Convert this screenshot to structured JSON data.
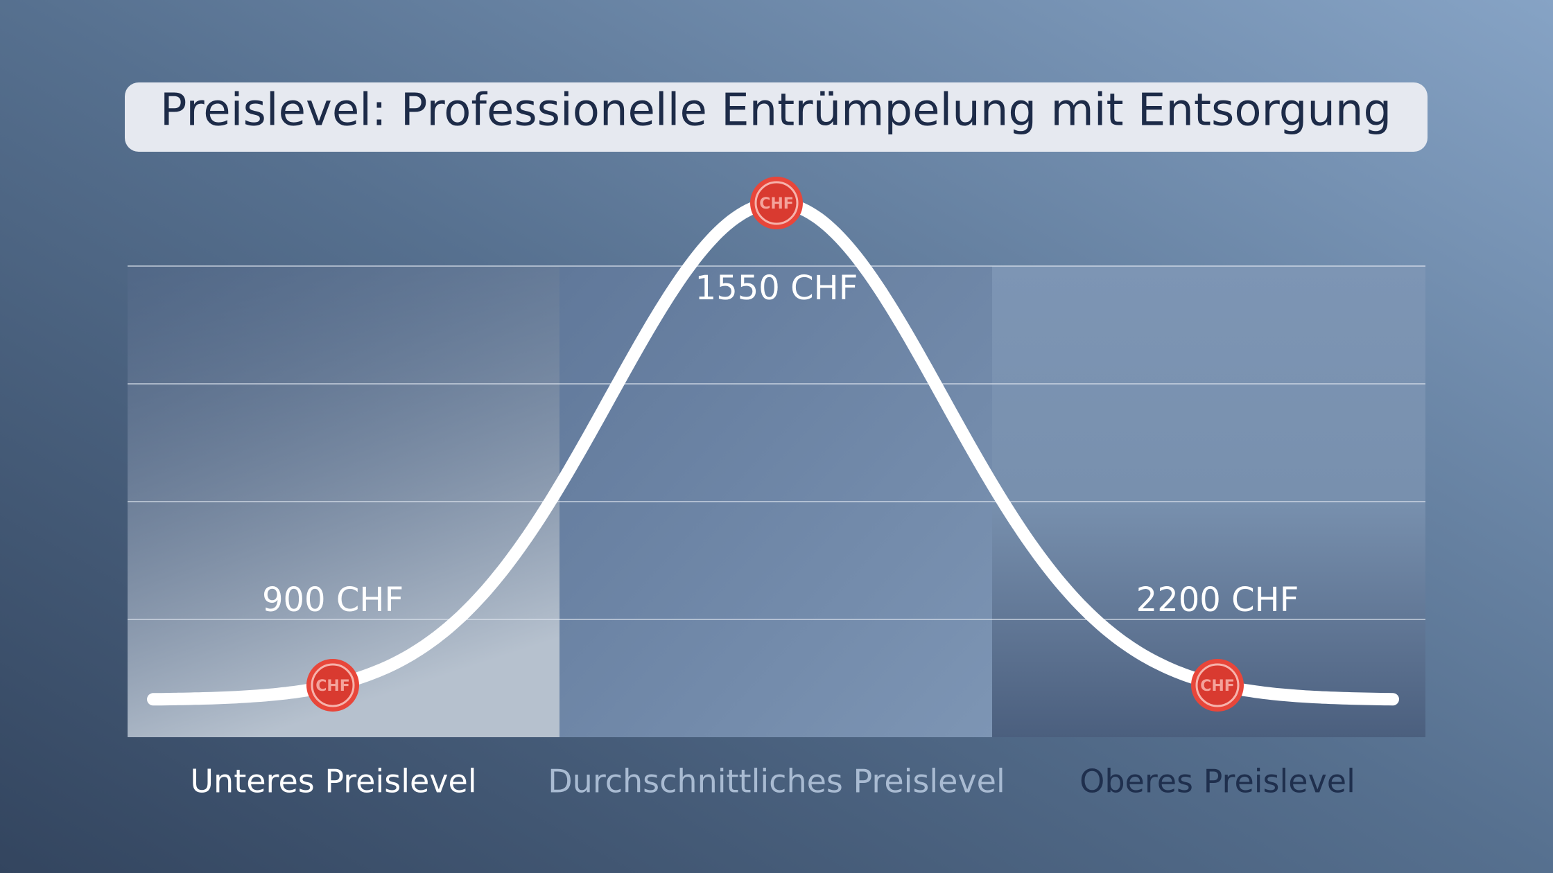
{
  "title": "Preislevel: Professionelle Entrümpelung mit Entsorgung",
  "price_points": [
    {
      "label": "900 CHF",
      "badge": "CHF"
    },
    {
      "label": "1550 CHF",
      "badge": "CHF"
    },
    {
      "label": "2200 CHF",
      "badge": "CHF"
    }
  ],
  "levels": [
    "Unteres Preislevel",
    "Durchschnittliches Preislevel",
    "Oberes Preislevel"
  ]
}
